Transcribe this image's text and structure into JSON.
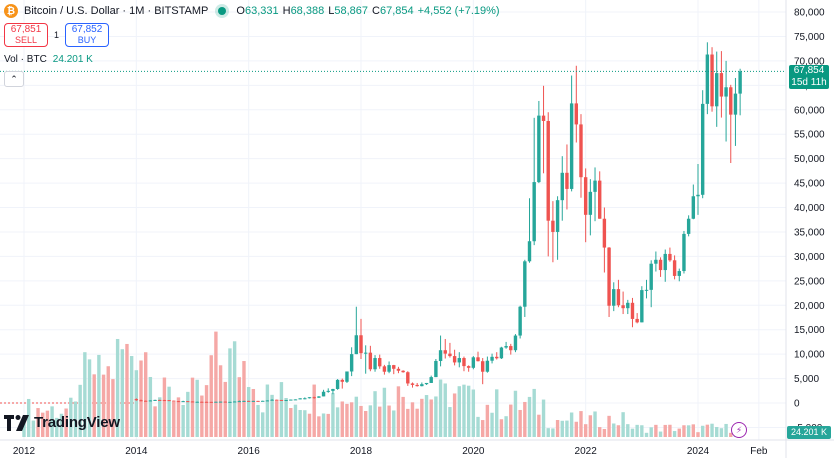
{
  "header": {
    "symbol_title": "Bitcoin / U.S. Dollar · 1M · BITSTAMP",
    "ohlc": [
      {
        "key": "O",
        "value": "63,331"
      },
      {
        "key": "H",
        "value": "68,388"
      },
      {
        "key": "L",
        "value": "58,867"
      },
      {
        "key": "C",
        "value": "67,854"
      }
    ],
    "change": "+4,552 (+7.19%)"
  },
  "trade": {
    "sell_price": "67,851",
    "sell_label": "SELL",
    "spread": "1",
    "buy_price": "67,852",
    "buy_label": "BUY"
  },
  "volume_legend": {
    "label": "Vol · BTC",
    "value": "24.201 K"
  },
  "logo": {
    "text": "TradingView"
  },
  "price_tag": {
    "price": "67,854",
    "countdown": "15d 11h"
  },
  "volume_tag": {
    "value": "24.201 K"
  },
  "colors": {
    "up": "#26a69a",
    "down": "#ef5350",
    "up_vol": "#a6dbd4",
    "down_vol": "#f5a8a6",
    "accent": "#089981"
  },
  "chart_data": {
    "type": "candlestick",
    "yaxis_ticks": [
      "80,000",
      "75,000",
      "70,000",
      "65,000",
      "60,000",
      "55,000",
      "50,000",
      "45,000",
      "40,000",
      "35,000",
      "30,000",
      "25,000",
      "20,000",
      "15,000",
      "10,000",
      "5,000",
      "0",
      "-5,000"
    ],
    "ylim": [
      -5000,
      80000
    ],
    "xaxis_ticks": [
      {
        "label": "2012",
        "month_index": 0
      },
      {
        "label": "2014",
        "month_index": 24
      },
      {
        "label": "2016",
        "month_index": 48
      },
      {
        "label": "2018",
        "month_index": 72
      },
      {
        "label": "2020",
        "month_index": 96
      },
      {
        "label": "2022",
        "month_index": 120
      },
      {
        "label": "2024",
        "month_index": 144
      },
      {
        "label": "Feb",
        "month_index": 157
      }
    ],
    "candles": [
      [
        2014,
        1,
        800,
        950,
        450,
        560
      ],
      [
        2014,
        2,
        560,
        700,
        380,
        460
      ],
      [
        2014,
        3,
        460,
        500,
        380,
        445
      ],
      [
        2014,
        4,
        445,
        550,
        420,
        525
      ],
      [
        2014,
        5,
        525,
        680,
        440,
        630
      ],
      [
        2014,
        6,
        630,
        670,
        540,
        600
      ],
      [
        2014,
        7,
        600,
        640,
        570,
        585
      ],
      [
        2014,
        8,
        585,
        600,
        450,
        480
      ],
      [
        2014,
        9,
        480,
        500,
        350,
        385
      ],
      [
        2014,
        10,
        385,
        420,
        300,
        340
      ],
      [
        2014,
        11,
        340,
        460,
        310,
        380
      ],
      [
        2014,
        12,
        380,
        390,
        300,
        320
      ],
      [
        2015,
        1,
        320,
        330,
        160,
        220
      ],
      [
        2015,
        2,
        220,
        280,
        200,
        255
      ],
      [
        2015,
        3,
        255,
        300,
        230,
        245
      ],
      [
        2015,
        4,
        245,
        260,
        210,
        235
      ],
      [
        2015,
        5,
        235,
        250,
        225,
        230
      ],
      [
        2015,
        6,
        230,
        265,
        220,
        262
      ],
      [
        2015,
        7,
        262,
        300,
        260,
        285
      ],
      [
        2015,
        8,
        285,
        290,
        200,
        230
      ],
      [
        2015,
        9,
        230,
        250,
        225,
        235
      ],
      [
        2015,
        10,
        235,
        330,
        235,
        315
      ],
      [
        2015,
        11,
        315,
        500,
        300,
        380
      ],
      [
        2015,
        12,
        380,
        470,
        350,
        430
      ],
      [
        2016,
        1,
        430,
        460,
        350,
        370
      ],
      [
        2016,
        2,
        370,
        440,
        360,
        435
      ],
      [
        2016,
        3,
        435,
        440,
        400,
        415
      ],
      [
        2016,
        4,
        415,
        470,
        410,
        450
      ],
      [
        2016,
        5,
        450,
        550,
        440,
        530
      ],
      [
        2016,
        6,
        530,
        780,
        520,
        670
      ],
      [
        2016,
        7,
        670,
        700,
        600,
        625
      ],
      [
        2016,
        8,
        625,
        630,
        530,
        575
      ],
      [
        2016,
        9,
        575,
        620,
        570,
        610
      ],
      [
        2016,
        10,
        610,
        720,
        600,
        700
      ],
      [
        2016,
        11,
        700,
        750,
        690,
        740
      ],
      [
        2016,
        12,
        740,
        980,
        740,
        960
      ],
      [
        2017,
        1,
        960,
        1150,
        750,
        970
      ],
      [
        2017,
        2,
        970,
        1200,
        920,
        1190
      ],
      [
        2017,
        3,
        1190,
        1300,
        890,
        1080
      ],
      [
        2017,
        4,
        1080,
        1400,
        1050,
        1350
      ],
      [
        2017,
        5,
        1350,
        2700,
        1350,
        2300
      ],
      [
        2017,
        6,
        2300,
        3000,
        2100,
        2480
      ],
      [
        2017,
        7,
        2480,
        2900,
        1800,
        2870
      ],
      [
        2017,
        8,
        2870,
        4900,
        2700,
        4730
      ],
      [
        2017,
        9,
        4730,
        5000,
        2950,
        4340
      ],
      [
        2017,
        10,
        4340,
        6450,
        4100,
        6450
      ],
      [
        2017,
        11,
        6450,
        11400,
        5500,
        10000
      ],
      [
        2017,
        12,
        10000,
        19700,
        10000,
        13860
      ],
      [
        2018,
        1,
        13860,
        17200,
        9000,
        10200
      ],
      [
        2018,
        2,
        10200,
        11800,
        6000,
        10300
      ],
      [
        2018,
        3,
        10300,
        11700,
        6500,
        6900
      ],
      [
        2018,
        4,
        6900,
        9800,
        6400,
        9200
      ],
      [
        2018,
        5,
        9200,
        9900,
        7000,
        7500
      ],
      [
        2018,
        6,
        7500,
        7800,
        5800,
        6400
      ],
      [
        2018,
        7,
        6400,
        8500,
        6100,
        7750
      ],
      [
        2018,
        8,
        7750,
        7800,
        5900,
        7000
      ],
      [
        2018,
        9,
        7000,
        7400,
        6100,
        6600
      ],
      [
        2018,
        10,
        6600,
        6700,
        6200,
        6300
      ],
      [
        2018,
        11,
        6300,
        6500,
        3500,
        4000
      ],
      [
        2018,
        12,
        4000,
        4200,
        3150,
        3700
      ],
      [
        2019,
        1,
        3700,
        4100,
        3350,
        3450
      ],
      [
        2019,
        2,
        3450,
        4200,
        3400,
        3850
      ],
      [
        2019,
        3,
        3850,
        4100,
        3700,
        4100
      ],
      [
        2019,
        4,
        4100,
        5600,
        4100,
        5300
      ],
      [
        2019,
        5,
        5300,
        9000,
        5300,
        8600
      ],
      [
        2019,
        6,
        8600,
        13800,
        7500,
        10800
      ],
      [
        2019,
        7,
        10800,
        13100,
        9100,
        10100
      ],
      [
        2019,
        8,
        10100,
        12300,
        9300,
        9600
      ],
      [
        2019,
        9,
        9600,
        10900,
        7700,
        8300
      ],
      [
        2019,
        10,
        8300,
        10400,
        7300,
        9200
      ],
      [
        2019,
        11,
        9200,
        9500,
        6500,
        7550
      ],
      [
        2019,
        12,
        7550,
        7700,
        6400,
        7200
      ],
      [
        2020,
        1,
        7200,
        9600,
        6900,
        9350
      ],
      [
        2020,
        2,
        9350,
        10500,
        8500,
        8550
      ],
      [
        2020,
        3,
        8550,
        9200,
        3850,
        6400
      ],
      [
        2020,
        4,
        6400,
        9500,
        6200,
        8650
      ],
      [
        2020,
        5,
        8650,
        10100,
        8100,
        9450
      ],
      [
        2020,
        6,
        9450,
        10400,
        8900,
        9150
      ],
      [
        2020,
        7,
        9150,
        11500,
        9000,
        11350
      ],
      [
        2020,
        8,
        11350,
        12500,
        11100,
        11650
      ],
      [
        2020,
        9,
        11650,
        12100,
        9900,
        10800
      ],
      [
        2020,
        10,
        10800,
        14100,
        10400,
        13800
      ],
      [
        2020,
        11,
        13800,
        19900,
        13200,
        19700
      ],
      [
        2020,
        12,
        19700,
        29300,
        17600,
        28990
      ],
      [
        2021,
        1,
        28990,
        41900,
        28700,
        33100
      ],
      [
        2021,
        2,
        33100,
        58350,
        32300,
        45200
      ],
      [
        2021,
        3,
        45200,
        61800,
        45000,
        58800
      ],
      [
        2021,
        4,
        58800,
        64900,
        47000,
        57700
      ],
      [
        2021,
        5,
        57700,
        59500,
        30000,
        37300
      ],
      [
        2021,
        6,
        37300,
        41300,
        28800,
        35000
      ],
      [
        2021,
        7,
        35000,
        42300,
        29300,
        41500
      ],
      [
        2021,
        8,
        41500,
        50500,
        37300,
        47100
      ],
      [
        2021,
        9,
        47100,
        52900,
        39600,
        43800
      ],
      [
        2021,
        10,
        43800,
        67000,
        43300,
        61300
      ],
      [
        2021,
        11,
        61300,
        69000,
        53300,
        57000
      ],
      [
        2021,
        12,
        57000,
        59100,
        42000,
        46200
      ],
      [
        2022,
        1,
        46200,
        48000,
        32900,
        38500
      ],
      [
        2022,
        2,
        38500,
        45800,
        34300,
        43200
      ],
      [
        2022,
        3,
        43200,
        48200,
        37200,
        45500
      ],
      [
        2022,
        4,
        45500,
        47400,
        37700,
        37700
      ],
      [
        2022,
        5,
        37700,
        40000,
        26700,
        31800
      ],
      [
        2022,
        6,
        31800,
        31900,
        17600,
        19900
      ],
      [
        2022,
        7,
        19900,
        24700,
        18800,
        23300
      ],
      [
        2022,
        8,
        23300,
        25200,
        19600,
        20000
      ],
      [
        2022,
        9,
        20000,
        22800,
        18200,
        19400
      ],
      [
        2022,
        10,
        19400,
        21100,
        18200,
        20500
      ],
      [
        2022,
        11,
        20500,
        21500,
        15500,
        17200
      ],
      [
        2022,
        12,
        17200,
        18400,
        16300,
        16500
      ],
      [
        2023,
        1,
        16500,
        23900,
        16500,
        23100
      ],
      [
        2023,
        2,
        23100,
        25200,
        21400,
        23150
      ],
      [
        2023,
        3,
        23150,
        29200,
        19600,
        28500
      ],
      [
        2023,
        4,
        28500,
        31000,
        26900,
        29300
      ],
      [
        2023,
        5,
        29300,
        29800,
        25800,
        27200
      ],
      [
        2023,
        6,
        27200,
        31400,
        24800,
        30500
      ],
      [
        2023,
        7,
        30500,
        31800,
        28900,
        29200
      ],
      [
        2023,
        8,
        29200,
        30200,
        25300,
        26000
      ],
      [
        2023,
        9,
        26000,
        27500,
        24900,
        27000
      ],
      [
        2023,
        10,
        27000,
        35200,
        26500,
        34600
      ],
      [
        2023,
        11,
        34600,
        38400,
        34100,
        37700
      ],
      [
        2023,
        12,
        37700,
        44700,
        37600,
        42300
      ],
      [
        2024,
        1,
        42300,
        48900,
        38500,
        42600
      ],
      [
        2024,
        2,
        42600,
        64000,
        41900,
        61200
      ],
      [
        2024,
        3,
        61200,
        73800,
        59100,
        71300
      ],
      [
        2024,
        4,
        71300,
        72800,
        59600,
        60700
      ],
      [
        2024,
        5,
        60700,
        71900,
        56500,
        67500
      ],
      [
        2024,
        6,
        67500,
        72000,
        58400,
        62700
      ],
      [
        2024,
        7,
        62700,
        70000,
        53500,
        64600
      ],
      [
        2024,
        8,
        64600,
        65100,
        49100,
        59000
      ],
      [
        2024,
        9,
        59000,
        66500,
        52600,
        63300
      ],
      [
        2024,
        10,
        63300,
        68388,
        58867,
        67854
      ]
    ]
  }
}
